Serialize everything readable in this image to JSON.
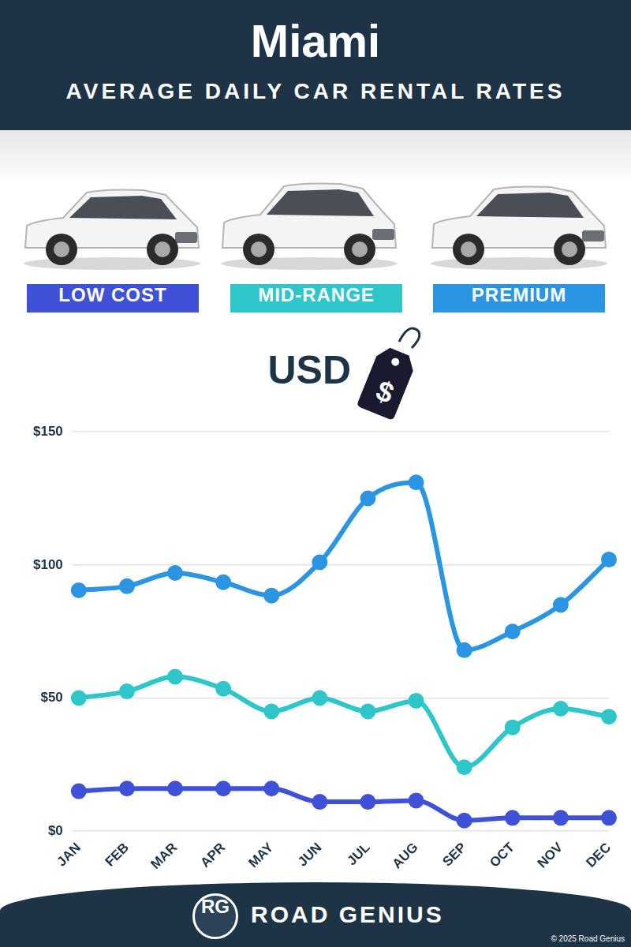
{
  "chart_data": {
    "type": "line",
    "title": "Miami",
    "subtitle": "AVERAGE DAILY CAR RENTAL RATES",
    "y_label": "USD",
    "tag_label": "$",
    "categories": [
      "JAN",
      "FEB",
      "MAR",
      "APR",
      "MAY",
      "JUN",
      "JUL",
      "AUG",
      "SEP",
      "OCT",
      "NOV",
      "DEC"
    ],
    "series": [
      {
        "name": "LOW COST",
        "color": "#3f51d6",
        "values": [
          15,
          16,
          16,
          16,
          16,
          11,
          11,
          11.5,
          4,
          5,
          5,
          5
        ]
      },
      {
        "name": "MID-RANGE",
        "color": "#2fc6c9",
        "values": [
          50,
          52.5,
          58,
          53.5,
          45,
          50,
          45,
          49,
          24,
          39,
          46,
          43
        ]
      },
      {
        "name": "PREMIUM",
        "color": "#2b95e3",
        "values": [
          90.5,
          92,
          97,
          93.5,
          88.5,
          101,
          125,
          131,
          68,
          75,
          85,
          102
        ]
      }
    ],
    "ylim": [
      0,
      150
    ],
    "yticks": [
      {
        "value": 0,
        "label": "$0"
      },
      {
        "value": 50,
        "label": "$50"
      },
      {
        "value": 100,
        "label": "$100"
      },
      {
        "value": 150,
        "label": "$150"
      }
    ],
    "grid": true,
    "legend": "top",
    "marker": "circle",
    "line_style": "solid"
  },
  "footer": {
    "logo": "RG",
    "brand": "ROAD GENIUS",
    "copyright": "© 2025 Road Genius"
  }
}
